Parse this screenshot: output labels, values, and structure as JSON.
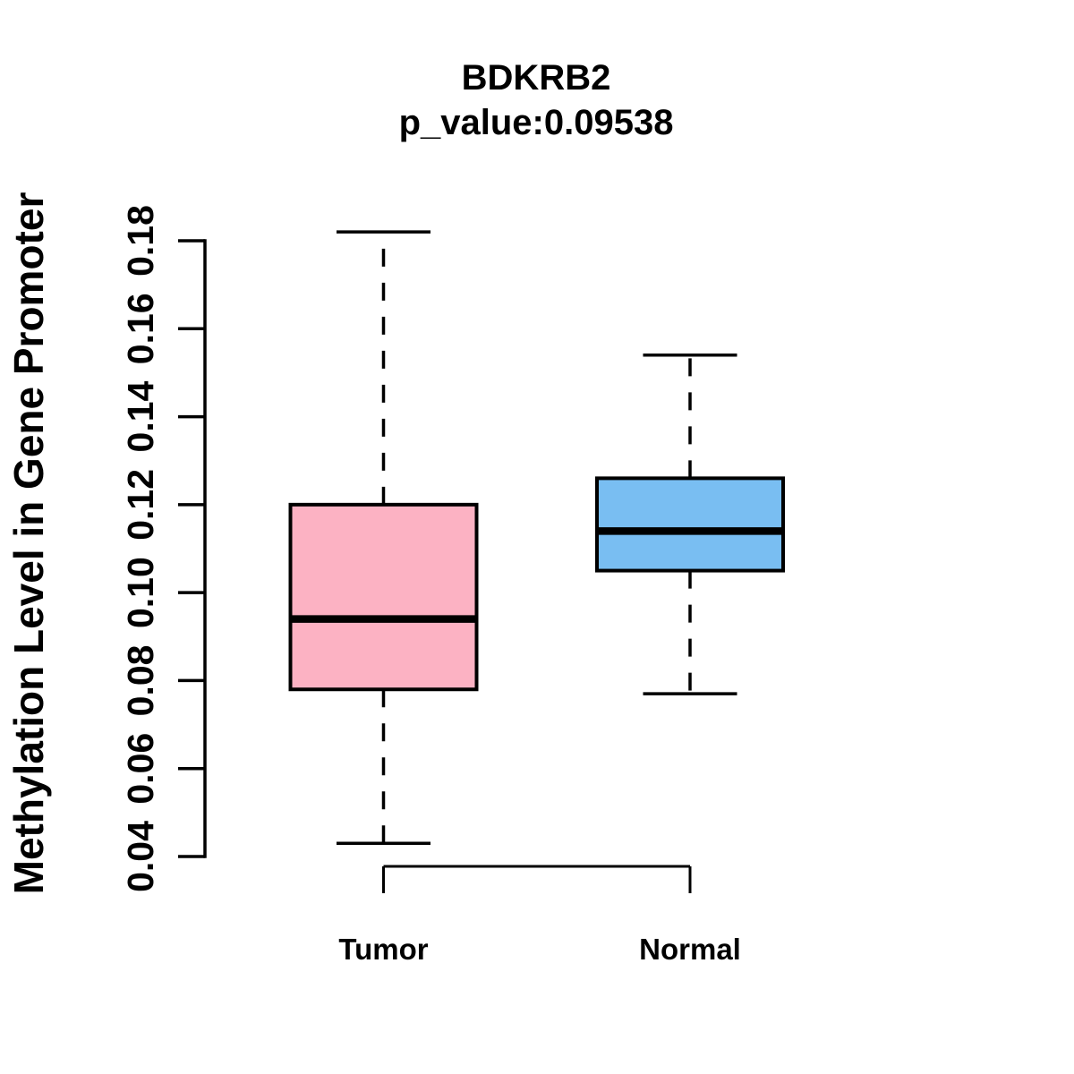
{
  "figure": {
    "background": "#ffffff",
    "axis_color": "#000000"
  },
  "chart_data": {
    "type": "boxplot",
    "title": "BDKRB2",
    "subtitle": "p_value:0.09538",
    "ylabel": "Methylation Level in Gene Promoter",
    "xlabel": "",
    "categories": [
      "Tumor",
      "Normal"
    ],
    "ylim": [
      0.04,
      0.18
    ],
    "yticks": [
      0.04,
      0.06,
      0.08,
      0.1,
      0.12,
      0.14,
      0.16,
      0.18
    ],
    "ytick_decimals": 2,
    "grid": false,
    "legend": "none",
    "whisker_style": "dashed",
    "series": [
      {
        "name": "Tumor",
        "color": "#FCB2C3",
        "border_color": "#000000",
        "whisker_low": 0.043,
        "q1": 0.078,
        "median": 0.094,
        "q3": 0.12,
        "whisker_high": 0.182,
        "outliers": []
      },
      {
        "name": "Normal",
        "color": "#79BEF2",
        "border_color": "#000000",
        "whisker_low": 0.077,
        "q1": 0.105,
        "median": 0.114,
        "q3": 0.126,
        "whisker_high": 0.154,
        "outliers": []
      }
    ]
  }
}
